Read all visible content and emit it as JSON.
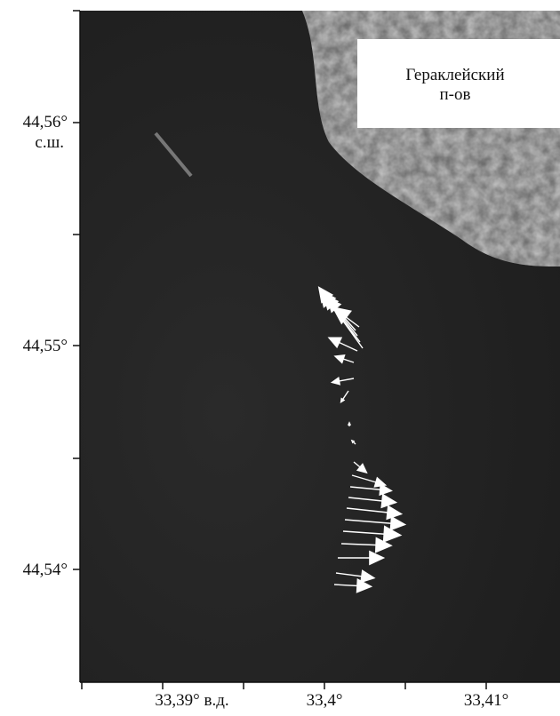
{
  "map": {
    "inset_label": [
      "Гераклейский",
      "п-ов"
    ],
    "y_axis": {
      "ticks": [
        [
          "44,56°",
          "с.ш."
        ],
        [
          "44,55°"
        ],
        [
          "44,54°"
        ]
      ]
    },
    "x_axis": {
      "ticks": [
        "33,39° в.д.",
        "33,4°",
        "33,41°"
      ]
    }
  }
}
